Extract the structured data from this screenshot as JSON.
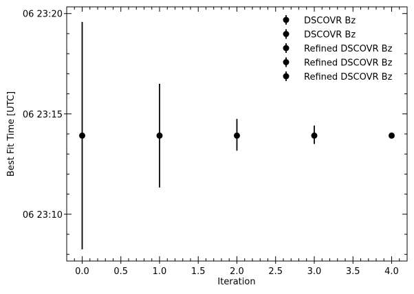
{
  "chart_data": {
    "type": "scatter",
    "xlabel": "Iteration",
    "ylabel": "Best Fit Time [UTC]",
    "xlim": [
      -0.2,
      4.2
    ],
    "ylim": [
      "06 23:07:40",
      "06 23:20:20"
    ],
    "x_ticks": [
      "0.0",
      "0.5",
      "1.0",
      "1.5",
      "2.0",
      "2.5",
      "3.0",
      "3.5",
      "4.0"
    ],
    "y_ticks": [
      "06 23:10",
      "06 23:15",
      "06 23:20"
    ],
    "grid": false,
    "legend": {
      "placement": "top-right",
      "entries": [
        "DSCOVR Bz",
        "DSCOVR Bz",
        "Refined DSCOVR Bz",
        "Refined DSCOVR Bz",
        "Refined DSCOVR Bz"
      ]
    },
    "series": [
      {
        "name": "DSCOVR Bz",
        "x": 0,
        "y": "06 23:13:55",
        "yerr_low": "06 23:08:15",
        "yerr_high": "06 23:19:35",
        "color": "#000000"
      },
      {
        "name": "DSCOVR Bz",
        "x": 1,
        "y": "06 23:13:55",
        "yerr_low": "06 23:11:20",
        "yerr_high": "06 23:16:30",
        "color": "#000000"
      },
      {
        "name": "Refined DSCOVR Bz",
        "x": 2,
        "y": "06 23:13:55",
        "yerr_low": "06 23:13:10",
        "yerr_high": "06 23:14:45",
        "color": "#000000"
      },
      {
        "name": "Refined DSCOVR Bz",
        "x": 3,
        "y": "06 23:13:55",
        "yerr_low": "06 23:13:30",
        "yerr_high": "06 23:14:25",
        "color": "#000000"
      },
      {
        "name": "Refined DSCOVR Bz",
        "x": 4,
        "y": "06 23:13:55",
        "yerr_low": "06 23:13:55",
        "yerr_high": "06 23:13:55",
        "color": "#000000"
      }
    ]
  }
}
